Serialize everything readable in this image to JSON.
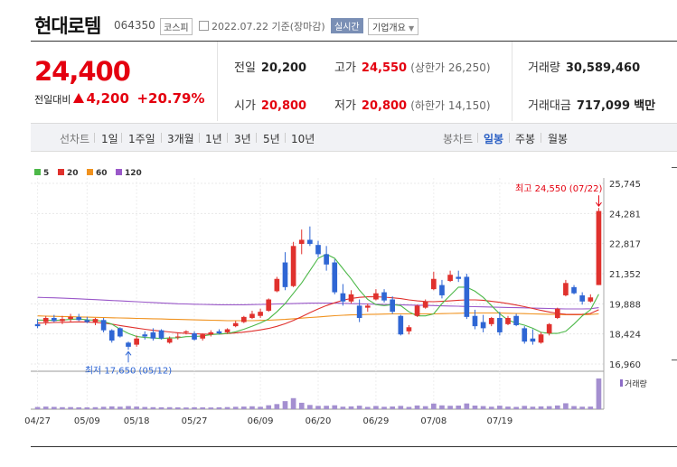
{
  "header": {
    "stock_name": "현대로템",
    "stock_code": "064350",
    "market": "코스피",
    "date": "2022.07.22",
    "basis": "기준(장마감)",
    "realtime_label": "실시간",
    "company_info_label": "기업개요"
  },
  "summary": {
    "current_price": "24,400",
    "change_label": "전일대비",
    "change_amount": "4,200",
    "change_percent": "+20.79%",
    "prev_close_label": "전일",
    "prev_close": "20,200",
    "open_label": "시가",
    "open": "20,800",
    "high_label": "고가",
    "high": "24,550",
    "upper_limit": "(상한가 26,250)",
    "low_label": "저가",
    "low": "20,800",
    "lower_limit": "(하한가 14,150)",
    "volume_label": "거래량",
    "volume": "30,589,460",
    "amount_label": "거래대금",
    "amount": "717,099",
    "amount_unit": "백만"
  },
  "toolbar": {
    "line_chart": "선차트",
    "periods": [
      "1일",
      "1주일",
      "3개월",
      "1년",
      "3년",
      "5년",
      "10년"
    ],
    "candle_chart": "봉차트",
    "daily": "일봉",
    "weekly": "주봉",
    "monthly": "월봉"
  },
  "colors": {
    "up": "#e0312d",
    "down": "#2f66d4",
    "ma5": "#4cb848",
    "ma20": "#e0312d",
    "ma60": "#f0921e",
    "ma120": "#9a58c9"
  },
  "chart_data": {
    "type": "candlestick",
    "legend": [
      "5",
      "20",
      "60",
      "120"
    ],
    "y_ticks": [
      "25,745",
      "24,281",
      "22,817",
      "21,352",
      "19,888",
      "18,424",
      "16,960"
    ],
    "ylim": [
      16960,
      25745
    ],
    "x_labels": [
      "04/27",
      "05/09",
      "05/18",
      "05/27",
      "06/09",
      "06/20",
      "06/29",
      "07/08",
      "07/19"
    ],
    "high_annotation": "최고 24,550 (07/22)",
    "low_annotation": "최저 17,650 (05/12)",
    "volume_label": "거래량",
    "candles": [
      {
        "o": 18900,
        "h": 19150,
        "l": 18700,
        "c": 18800
      },
      {
        "o": 19000,
        "h": 19300,
        "l": 18850,
        "c": 19200
      },
      {
        "o": 19200,
        "h": 19350,
        "l": 19000,
        "c": 19050
      },
      {
        "o": 19050,
        "h": 19300,
        "l": 18900,
        "c": 19150
      },
      {
        "o": 19150,
        "h": 19400,
        "l": 19000,
        "c": 19250
      },
      {
        "o": 19250,
        "h": 19400,
        "l": 19050,
        "c": 19100
      },
      {
        "o": 19100,
        "h": 19250,
        "l": 18950,
        "c": 19000
      },
      {
        "o": 19000,
        "h": 19200,
        "l": 18850,
        "c": 19150
      },
      {
        "o": 19100,
        "h": 19200,
        "l": 18500,
        "c": 18600
      },
      {
        "o": 18600,
        "h": 18650,
        "l": 18000,
        "c": 18100
      },
      {
        "o": 18700,
        "h": 18750,
        "l": 18250,
        "c": 18300
      },
      {
        "o": 18000,
        "h": 18050,
        "l": 17650,
        "c": 17800
      },
      {
        "o": 17900,
        "h": 18350,
        "l": 17800,
        "c": 18200
      },
      {
        "o": 18400,
        "h": 18550,
        "l": 18150,
        "c": 18300
      },
      {
        "o": 18500,
        "h": 18700,
        "l": 18100,
        "c": 18200
      },
      {
        "o": 18600,
        "h": 18650,
        "l": 18150,
        "c": 18200
      },
      {
        "o": 18000,
        "h": 18300,
        "l": 17950,
        "c": 18200
      },
      {
        "o": 18300,
        "h": 18500,
        "l": 18150,
        "c": 18300
      },
      {
        "o": 18500,
        "h": 18600,
        "l": 18400,
        "c": 18550
      },
      {
        "o": 18450,
        "h": 18550,
        "l": 18100,
        "c": 18150
      },
      {
        "o": 18200,
        "h": 18450,
        "l": 18100,
        "c": 18400
      },
      {
        "o": 18400,
        "h": 18600,
        "l": 18300,
        "c": 18500
      },
      {
        "o": 18550,
        "h": 18650,
        "l": 18400,
        "c": 18450
      },
      {
        "o": 18500,
        "h": 18700,
        "l": 18450,
        "c": 18650
      },
      {
        "o": 18800,
        "h": 19050,
        "l": 18750,
        "c": 18950
      },
      {
        "o": 19000,
        "h": 19300,
        "l": 18950,
        "c": 19250
      },
      {
        "o": 19200,
        "h": 19550,
        "l": 19150,
        "c": 19400
      },
      {
        "o": 19300,
        "h": 19650,
        "l": 19200,
        "c": 19500
      },
      {
        "o": 19550,
        "h": 20150,
        "l": 19500,
        "c": 20100
      },
      {
        "o": 20500,
        "h": 21200,
        "l": 20450,
        "c": 21100
      },
      {
        "o": 21900,
        "h": 22400,
        "l": 20550,
        "c": 20700
      },
      {
        "o": 20750,
        "h": 22900,
        "l": 20700,
        "c": 22700
      },
      {
        "o": 22800,
        "h": 23500,
        "l": 22300,
        "c": 23000
      },
      {
        "o": 23000,
        "h": 23650,
        "l": 22700,
        "c": 22800
      },
      {
        "o": 22750,
        "h": 22950,
        "l": 22150,
        "c": 22300
      },
      {
        "o": 22300,
        "h": 22700,
        "l": 21500,
        "c": 21800
      },
      {
        "o": 21900,
        "h": 22050,
        "l": 20350,
        "c": 20450
      },
      {
        "o": 20400,
        "h": 20850,
        "l": 19800,
        "c": 20000
      },
      {
        "o": 20000,
        "h": 20550,
        "l": 19900,
        "c": 20350
      },
      {
        "o": 19800,
        "h": 20100,
        "l": 19000,
        "c": 19200
      },
      {
        "o": 19700,
        "h": 19900,
        "l": 19500,
        "c": 19800
      },
      {
        "o": 20100,
        "h": 20600,
        "l": 20050,
        "c": 20400
      },
      {
        "o": 20450,
        "h": 20600,
        "l": 19950,
        "c": 20050
      },
      {
        "o": 20100,
        "h": 20250,
        "l": 19400,
        "c": 19500
      },
      {
        "o": 19300,
        "h": 19350,
        "l": 18350,
        "c": 18400
      },
      {
        "o": 18550,
        "h": 18850,
        "l": 18400,
        "c": 18750
      },
      {
        "o": 19300,
        "h": 19850,
        "l": 19250,
        "c": 19800
      },
      {
        "o": 19700,
        "h": 20100,
        "l": 19650,
        "c": 20000
      },
      {
        "o": 20600,
        "h": 21450,
        "l": 20550,
        "c": 21100
      },
      {
        "o": 20800,
        "h": 21050,
        "l": 20150,
        "c": 20300
      },
      {
        "o": 21000,
        "h": 21500,
        "l": 20950,
        "c": 21300
      },
      {
        "o": 21200,
        "h": 21500,
        "l": 20950,
        "c": 21100
      },
      {
        "o": 21200,
        "h": 21350,
        "l": 19150,
        "c": 19250
      },
      {
        "o": 19300,
        "h": 19600,
        "l": 18650,
        "c": 18800
      },
      {
        "o": 19000,
        "h": 19350,
        "l": 18500,
        "c": 18700
      },
      {
        "o": 18900,
        "h": 19250,
        "l": 18800,
        "c": 19200
      },
      {
        "o": 19200,
        "h": 19500,
        "l": 18350,
        "c": 18500
      },
      {
        "o": 18900,
        "h": 19300,
        "l": 18850,
        "c": 19200
      },
      {
        "o": 19300,
        "h": 19400,
        "l": 18800,
        "c": 18850
      },
      {
        "o": 18700,
        "h": 18800,
        "l": 17950,
        "c": 18050
      },
      {
        "o": 18200,
        "h": 18650,
        "l": 17900,
        "c": 18050
      },
      {
        "o": 18000,
        "h": 18500,
        "l": 17950,
        "c": 18400
      },
      {
        "o": 18450,
        "h": 18950,
        "l": 18350,
        "c": 18900
      },
      {
        "o": 19200,
        "h": 19700,
        "l": 19150,
        "c": 19650
      },
      {
        "o": 20300,
        "h": 21050,
        "l": 20250,
        "c": 20900
      },
      {
        "o": 20700,
        "h": 20800,
        "l": 20350,
        "c": 20400
      },
      {
        "o": 20300,
        "h": 20450,
        "l": 19850,
        "c": 20000
      },
      {
        "o": 20000,
        "h": 20350,
        "l": 19950,
        "c": 20200
      },
      {
        "o": 20800,
        "h": 24550,
        "l": 20800,
        "c": 24400
      }
    ],
    "volumes": [
      2.2,
      2.6,
      2.3,
      2.0,
      2.1,
      1.9,
      1.8,
      2.0,
      2.4,
      2.8,
      2.5,
      3.1,
      2.6,
      2.2,
      2.0,
      1.9,
      2.0,
      1.8,
      1.7,
      1.9,
      1.8,
      1.7,
      1.9,
      2.1,
      2.4,
      2.6,
      2.9,
      2.4,
      3.9,
      5.1,
      8.0,
      11.0,
      6.4,
      4.2,
      3.3,
      3.4,
      3.9,
      2.5,
      2.8,
      3.5,
      2.3,
      3.2,
      2.4,
      2.7,
      3.3,
      2.3,
      3.7,
      3.0,
      5.6,
      3.8,
      3.4,
      3.6,
      5.7,
      3.6,
      3.1,
      2.5,
      3.5,
      2.6,
      2.3,
      3.3,
      2.5,
      2.8,
      3.0,
      3.7,
      5.9,
      3.1,
      2.5,
      2.6,
      30.6
    ],
    "ma5": [
      19100,
      19090,
      19080,
      19100,
      19130,
      19150,
      19110,
      19090,
      19030,
      18900,
      18650,
      18450,
      18300,
      18250,
      18230,
      18200,
      18230,
      18240,
      18290,
      18300,
      18320,
      18390,
      18420,
      18450,
      18530,
      18650,
      18800,
      18960,
      19150,
      19500,
      19900,
      20400,
      20900,
      21500,
      22100,
      22300,
      22100,
      21600,
      21100,
      20550,
      20100,
      19850,
      19800,
      19850,
      19800,
      19500,
      19300,
      19300,
      19400,
      19900,
      20300,
      20700,
      20700,
      20500,
      20200,
      19800,
      19400,
      19100,
      18950,
      18850,
      18700,
      18500,
      18450,
      18450,
      18550,
      18900,
      19300,
      19600,
      20350
    ],
    "ma20": [
      18950,
      18960,
      18980,
      18990,
      19000,
      19010,
      19000,
      18980,
      18950,
      18900,
      18830,
      18770,
      18710,
      18650,
      18600,
      18560,
      18520,
      18480,
      18450,
      18430,
      18420,
      18410,
      18420,
      18440,
      18470,
      18510,
      18560,
      18620,
      18690,
      18790,
      18920,
      19080,
      19260,
      19460,
      19640,
      19800,
      19940,
      20060,
      20150,
      20200,
      20230,
      20230,
      20210,
      20180,
      20140,
      20080,
      20030,
      20000,
      19990,
      20010,
      20030,
      20060,
      20080,
      20080,
      20060,
      20010,
      19960,
      19900,
      19830,
      19750,
      19660,
      19570,
      19490,
      19420,
      19380,
      19370,
      19380,
      19420,
      19600
    ],
    "ma60": [
      19300,
      19290,
      19280,
      19270,
      19260,
      19250,
      19240,
      19230,
      19220,
      19210,
      19200,
      19190,
      19180,
      19170,
      19160,
      19150,
      19140,
      19130,
      19120,
      19110,
      19100,
      19090,
      19080,
      19070,
      19070,
      19070,
      19070,
      19080,
      19090,
      19110,
      19130,
      19160,
      19190,
      19220,
      19250,
      19280,
      19310,
      19330,
      19350,
      19360,
      19370,
      19380,
      19390,
      19400,
      19400,
      19400,
      19400,
      19400,
      19400,
      19410,
      19420,
      19430,
      19440,
      19440,
      19440,
      19440,
      19440,
      19430,
      19420,
      19410,
      19400,
      19390,
      19380,
      19370,
      19360,
      19360,
      19360,
      19370,
      19400
    ],
    "ma120": [
      20200,
      20190,
      20180,
      20160,
      20150,
      20130,
      20110,
      20090,
      20070,
      20050,
      20030,
      20010,
      19990,
      19970,
      19950,
      19930,
      19910,
      19890,
      19880,
      19870,
      19860,
      19850,
      19840,
      19840,
      19840,
      19840,
      19850,
      19860,
      19870,
      19880,
      19890,
      19900,
      19910,
      19920,
      19920,
      19920,
      19920,
      19910,
      19900,
      19890,
      19880,
      19870,
      19860,
      19850,
      19840,
      19830,
      19820,
      19810,
      19800,
      19790,
      19780,
      19770,
      19760,
      19750,
      19740,
      19730,
      19720,
      19710,
      19700,
      19690,
      19680,
      19670,
      19660,
      19650,
      19640,
      19640,
      19640,
      19650,
      19700
    ]
  }
}
